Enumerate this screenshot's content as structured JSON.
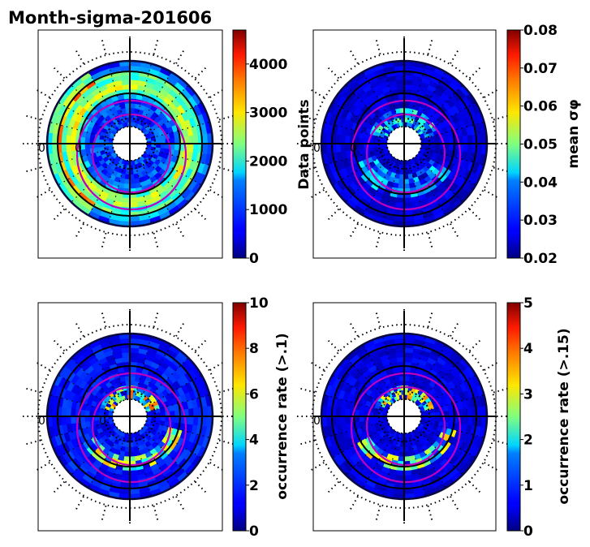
{
  "figure_title": "Month-sigma-201606",
  "chart_data": [
    {
      "type": "heatmap",
      "projection": "polar",
      "colormap": "jet",
      "colorbar_label": "Data points",
      "colorbar_range": [
        0,
        4700
      ],
      "colorbar_ticks": [
        "0",
        "1000",
        "2000",
        "3000",
        "4000"
      ],
      "colorbar_tick_values": [
        0,
        1000,
        2000,
        3000,
        4000
      ],
      "lon_labels": [
        "0",
        "0"
      ],
      "pattern": "counts",
      "ring_value": 0.45
    },
    {
      "type": "heatmap",
      "projection": "polar",
      "colormap": "jet",
      "colorbar_label": "mean σφ",
      "colorbar_range": [
        0.02,
        0.08
      ],
      "colorbar_ticks": [
        "0.02",
        "0.03",
        "0.04",
        "0.05",
        "0.06",
        "0.07",
        "0.08"
      ],
      "colorbar_tick_values": [
        0.02,
        0.03,
        0.04,
        0.05,
        0.06,
        0.07,
        0.08
      ],
      "lon_labels": [
        "0",
        "0"
      ],
      "pattern": "mean",
      "ring_value": 0.1
    },
    {
      "type": "heatmap",
      "projection": "polar",
      "colormap": "jet",
      "colorbar_label": "occurrence rate (>.1)",
      "colorbar_range": [
        0,
        10
      ],
      "colorbar_ticks": [
        "0",
        "2",
        "4",
        "6",
        "8",
        "10"
      ],
      "colorbar_tick_values": [
        0,
        2,
        4,
        6,
        8,
        10
      ],
      "lon_labels": [
        "0",
        "0"
      ],
      "pattern": "occ1",
      "ring_value": 0.1
    },
    {
      "type": "heatmap",
      "projection": "polar",
      "colormap": "jet",
      "colorbar_label": "occurrence rate (>.15)",
      "colorbar_range": [
        0,
        5
      ],
      "colorbar_ticks": [
        "0",
        "1",
        "2",
        "3",
        "4",
        "5"
      ],
      "colorbar_tick_values": [
        0,
        1,
        2,
        3,
        4,
        5
      ],
      "lon_labels": [
        "0",
        "0"
      ],
      "pattern": "occ15",
      "ring_value": 0.08
    }
  ],
  "colors": {
    "oval": "#c000c0",
    "grid": "#000000"
  }
}
